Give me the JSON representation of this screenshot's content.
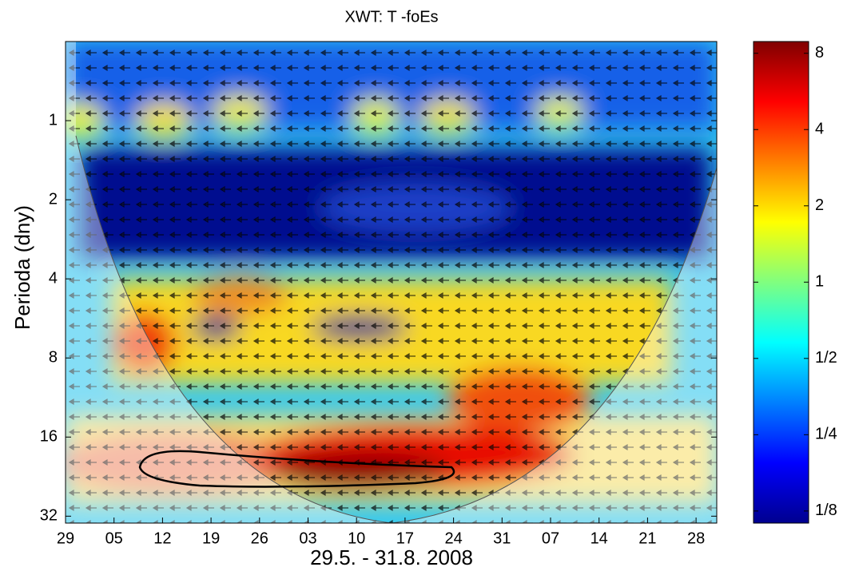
{
  "chart_data": {
    "type": "heatmap",
    "title": "XWT: T -foEs",
    "x_label": "29.5. - 31.8. 2008",
    "y_label": "Perioda (dny)",
    "categories": [
      "29",
      "05",
      "12",
      "19",
      "26",
      "03",
      "10",
      "17",
      "24",
      "31",
      "07",
      "14",
      "21",
      "28"
    ],
    "y_log": true,
    "ylim": [
      0.5,
      34
    ],
    "yticks": [
      1,
      2,
      4,
      8,
      16,
      32
    ],
    "colorbar": {
      "log": true,
      "lim": [
        0.112,
        8.9
      ],
      "ticks": [
        {
          "value": 0.125,
          "label": "1/8"
        },
        {
          "value": 0.25,
          "label": "1/4"
        },
        {
          "value": 0.5,
          "label": "1/2"
        },
        1,
        2,
        4,
        8
      ]
    }
  }
}
